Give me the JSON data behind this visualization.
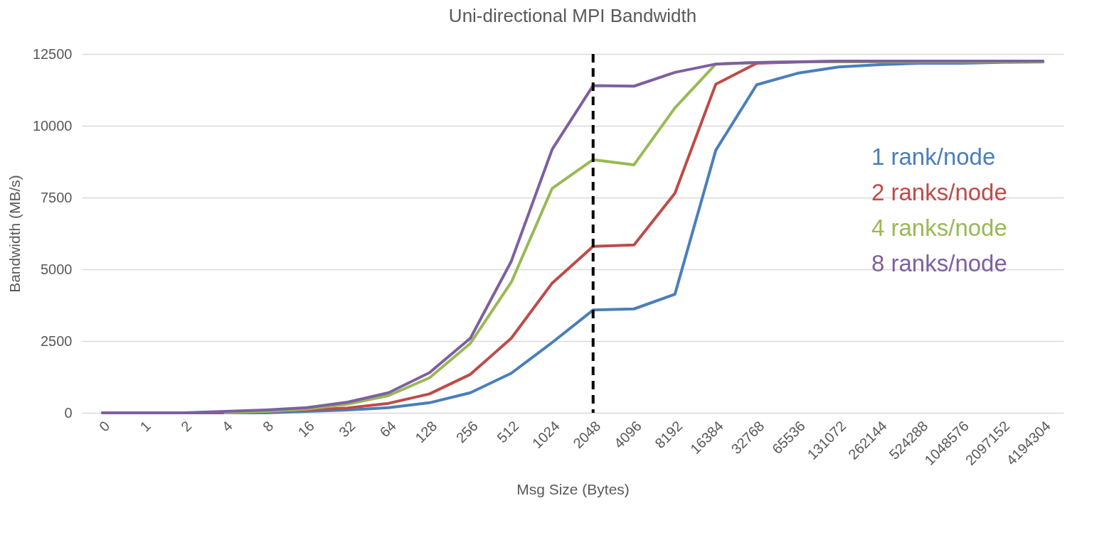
{
  "chart_data": {
    "type": "line",
    "title": "Uni-directional MPI Bandwidth",
    "xlabel": "Msg Size (Bytes)",
    "ylabel": "Bandwidth (MB/s)",
    "categories": [
      "0",
      "1",
      "2",
      "4",
      "8",
      "16",
      "32",
      "64",
      "128",
      "256",
      "512",
      "1024",
      "2048",
      "4096",
      "8192",
      "16384",
      "32768",
      "65536",
      "131072",
      "262144",
      "524288",
      "1048576",
      "2097152",
      "4194304"
    ],
    "series": [
      {
        "name": "1 rank/node",
        "color": "#4a7ebb",
        "values": [
          null,
          null,
          0,
          0,
          0,
          50,
          100,
          180,
          350,
          700,
          1380,
          2450,
          3580,
          3620,
          4130,
          9150,
          11430,
          11830,
          12050,
          12130,
          12180,
          12180,
          12210,
          12220
        ]
      },
      {
        "name": "2 ranks/node",
        "color": "#be4b48",
        "values": [
          null,
          null,
          0,
          0,
          50,
          100,
          170,
          330,
          660,
          1340,
          2600,
          4520,
          5800,
          5850,
          7650,
          11450,
          12180,
          12220,
          12240,
          null,
          null,
          null,
          null,
          null
        ]
      },
      {
        "name": "4 ranks/node",
        "color": "#98b954",
        "values": [
          null,
          null,
          null,
          0,
          50,
          130,
          300,
          600,
          1220,
          2420,
          4550,
          7820,
          8820,
          8640,
          10620,
          12150,
          12200,
          12230,
          12230,
          12230,
          12230,
          12230,
          12230,
          12230
        ]
      },
      {
        "name": "8 ranks/node",
        "color": "#7d60a0",
        "values": [
          0,
          0,
          0,
          50,
          100,
          180,
          370,
          700,
          1400,
          2600,
          5280,
          9180,
          11400,
          11380,
          11860,
          12150,
          12200,
          12230,
          12250,
          12250,
          12250,
          12250,
          12250,
          12250
        ]
      }
    ],
    "ylim": [
      0,
      12500
    ],
    "yticks": [
      0,
      2500,
      5000,
      7500,
      10000,
      12500
    ],
    "grid": "y",
    "legend": "right",
    "marker": "none",
    "line_style": "solid",
    "ref_lines": [
      {
        "axis": "x",
        "value": "2048",
        "color": "#000000",
        "line_style": "dashed"
      }
    ]
  }
}
